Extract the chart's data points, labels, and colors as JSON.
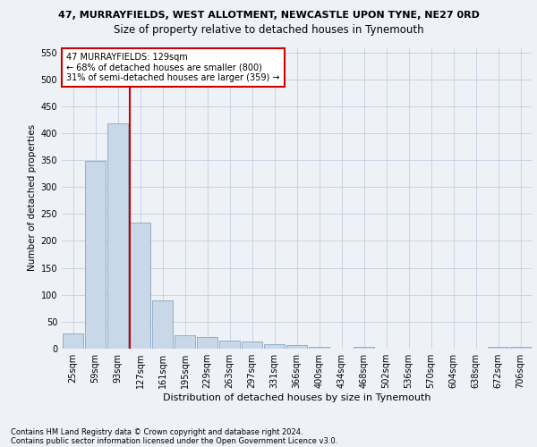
{
  "title": "47, MURRAYFIELDS, WEST ALLOTMENT, NEWCASTLE UPON TYNE, NE27 0RD",
  "subtitle": "Size of property relative to detached houses in Tynemouth",
  "xlabel": "Distribution of detached houses by size in Tynemouth",
  "ylabel": "Number of detached properties",
  "bar_color": "#c8d8e8",
  "bar_edge_color": "#7799bb",
  "categories": [
    "25sqm",
    "59sqm",
    "93sqm",
    "127sqm",
    "161sqm",
    "195sqm",
    "229sqm",
    "263sqm",
    "297sqm",
    "331sqm",
    "366sqm",
    "400sqm",
    "434sqm",
    "468sqm",
    "502sqm",
    "536sqm",
    "570sqm",
    "604sqm",
    "638sqm",
    "672sqm",
    "706sqm"
  ],
  "values": [
    28,
    348,
    418,
    234,
    90,
    25,
    22,
    15,
    13,
    8,
    7,
    4,
    0,
    3,
    0,
    0,
    0,
    0,
    0,
    4,
    4
  ],
  "ylim": [
    0,
    560
  ],
  "yticks": [
    0,
    50,
    100,
    150,
    200,
    250,
    300,
    350,
    400,
    450,
    500,
    550
  ],
  "property_line_bin": 3,
  "annotation_text": "47 MURRAYFIELDS: 129sqm\n← 68% of detached houses are smaller (800)\n31% of semi-detached houses are larger (359) →",
  "footnote1": "Contains HM Land Registry data © Crown copyright and database right 2024.",
  "footnote2": "Contains public sector information licensed under the Open Government Licence v3.0.",
  "background_color": "#eef2f7",
  "grid_color": "#c5cfe0",
  "annotation_box_color": "#ffffff",
  "annotation_box_edge_color": "#cc0000",
  "line_color": "#cc0000",
  "title_fontsize": 8,
  "subtitle_fontsize": 8.5,
  "ylabel_fontsize": 7.5,
  "xlabel_fontsize": 8,
  "tick_fontsize": 7,
  "annotation_fontsize": 7,
  "footnote_fontsize": 6
}
